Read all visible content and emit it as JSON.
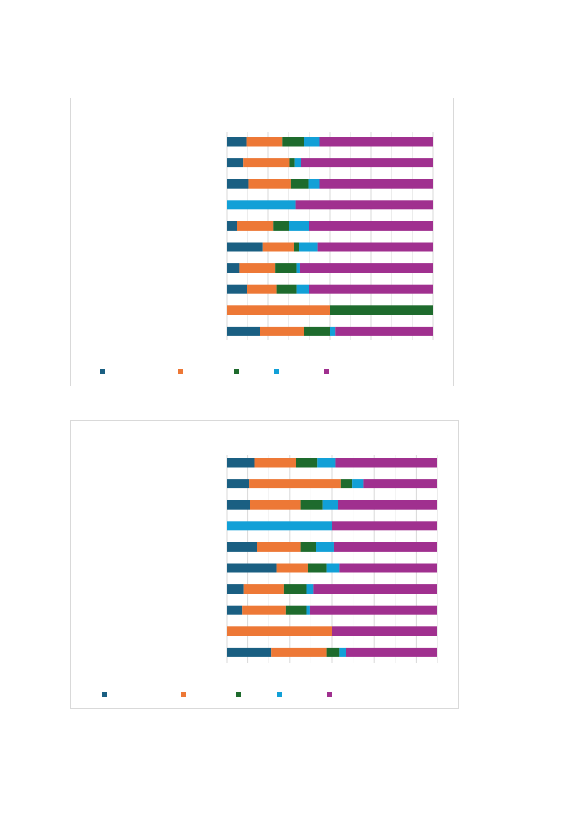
{
  "colors": {
    "series": [
      "#1a5f82",
      "#ed7836",
      "#1e6b2d",
      "#12a0d7",
      "#a0308f"
    ],
    "gridline": "#d9d9d9",
    "border": "#d9d9d9"
  },
  "chart_data": [
    {
      "type": "bar",
      "orientation": "horizontal",
      "stacked": "percent",
      "legend_position": "bottom",
      "grid": true,
      "xlim": [
        0,
        100
      ],
      "x_gridline_count": 10,
      "series": [
        {
          "values": [
            9.5,
            8,
            10.5,
            0,
            5,
            17.5,
            6,
            10,
            0,
            16
          ]
        },
        {
          "values": [
            17.5,
            22.5,
            20.5,
            0,
            17.5,
            15,
            17.5,
            14,
            50,
            21.5
          ]
        },
        {
          "values": [
            10.5,
            2.5,
            8.5,
            0,
            7.5,
            2.5,
            10.5,
            10,
            50,
            12.5
          ]
        },
        {
          "values": [
            7.5,
            3,
            5.5,
            33.3,
            10,
            9,
            1.5,
            6,
            0,
            2.5
          ]
        },
        {
          "values": [
            55,
            64,
            55,
            66.7,
            60,
            56,
            64.5,
            60,
            0,
            47.5
          ]
        }
      ]
    },
    {
      "type": "bar",
      "orientation": "horizontal",
      "stacked": "percent",
      "legend_position": "bottom",
      "grid": true,
      "xlim": [
        0,
        100
      ],
      "x_gridline_count": 10,
      "series": [
        {
          "values": [
            13,
            10.5,
            11,
            0,
            14.5,
            23.5,
            8,
            7.5,
            0,
            21
          ]
        },
        {
          "values": [
            20,
            43.5,
            24,
            0,
            20.5,
            15,
            19,
            20.5,
            50,
            26.5
          ]
        },
        {
          "values": [
            10,
            5.5,
            10.5,
            0,
            7.5,
            9,
            11,
            10,
            0,
            6
          ]
        },
        {
          "values": [
            8.5,
            5.5,
            7.5,
            50,
            8.5,
            6,
            3,
            1.5,
            0,
            3
          ]
        },
        {
          "values": [
            48.5,
            35,
            47,
            50,
            49,
            46.5,
            59,
            60.5,
            50,
            43.5
          ]
        }
      ]
    }
  ]
}
